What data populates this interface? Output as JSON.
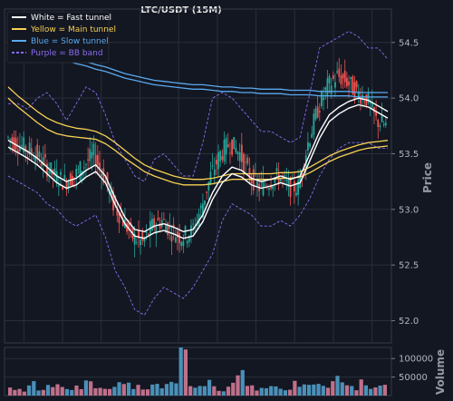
{
  "chart_data": {
    "type": "line",
    "title": "LTC/USDT (15M)",
    "price_ylabel": "Price",
    "volume_ylabel": "Volume",
    "price_ylim": [
      51.8,
      54.8
    ],
    "price_ticks": [
      52.0,
      52.5,
      53.0,
      53.5,
      54.0,
      54.5
    ],
    "price_tick_labels": [
      "52.0",
      "52.5",
      "53.0",
      "53.5",
      "54.0",
      "54.5"
    ],
    "volume_ylim": [
      0,
      130000
    ],
    "volume_ticks": [
      50000,
      100000
    ],
    "volume_tick_labels": [
      "50000",
      "100000"
    ],
    "legend": {
      "placement": "top-left",
      "entries": [
        {
          "label": "White = Fast tunnel",
          "color": "#ffffff",
          "style": "solid"
        },
        {
          "label": "Yellow = Main tunnel",
          "color": "#f7d154",
          "style": "solid"
        },
        {
          "label": "Blue = Slow tunnel",
          "color": "#5aa9f0",
          "style": "solid"
        },
        {
          "label": "Purple = BB band",
          "color": "#8a6cf0",
          "style": "dashed"
        }
      ]
    },
    "colors": {
      "up_candle": "#26a69a",
      "down_candle": "#ef5350",
      "fast_tunnel": "#ffffff",
      "main_tunnel": "#f7d154",
      "slow_tunnel": "#5aa9f0",
      "bb_band": "#8a6cf0",
      "volume_bar": "#4a90b8",
      "volume_bar_alt": "#c0708a"
    },
    "grid": true,
    "x_points": 40,
    "price_path": [
      53.65,
      53.6,
      53.55,
      53.5,
      53.4,
      53.3,
      53.25,
      53.3,
      53.4,
      53.5,
      53.3,
      53.05,
      52.9,
      52.75,
      52.7,
      52.85,
      52.9,
      52.8,
      52.75,
      52.8,
      53.0,
      53.3,
      53.5,
      53.6,
      53.5,
      53.3,
      53.2,
      53.25,
      53.3,
      53.2,
      53.2,
      53.6,
      53.9,
      54.1,
      54.2,
      54.15,
      54.05,
      54.0,
      53.8,
      53.75
    ],
    "fast_tunnel": {
      "upper": [
        53.62,
        53.57,
        53.52,
        53.46,
        53.38,
        53.3,
        53.25,
        53.28,
        53.35,
        53.4,
        53.3,
        53.1,
        52.93,
        52.82,
        52.8,
        52.85,
        52.87,
        52.84,
        52.8,
        52.82,
        52.95,
        53.15,
        53.3,
        53.38,
        53.35,
        53.28,
        53.25,
        53.27,
        53.3,
        53.27,
        53.3,
        53.5,
        53.7,
        53.85,
        53.92,
        53.97,
        54.0,
        53.98,
        53.93,
        53.88
      ],
      "lower": [
        53.56,
        53.51,
        53.46,
        53.4,
        53.32,
        53.24,
        53.19,
        53.22,
        53.29,
        53.34,
        53.24,
        53.04,
        52.87,
        52.76,
        52.74,
        52.79,
        52.81,
        52.78,
        52.74,
        52.76,
        52.89,
        53.09,
        53.24,
        53.32,
        53.29,
        53.22,
        53.19,
        53.21,
        53.24,
        53.21,
        53.24,
        53.44,
        53.64,
        53.79,
        53.86,
        53.91,
        53.94,
        53.92,
        53.87,
        53.82
      ]
    },
    "main_tunnel": {
      "upper": [
        54.1,
        54.02,
        53.95,
        53.88,
        53.82,
        53.78,
        53.75,
        53.73,
        53.72,
        53.7,
        53.66,
        53.6,
        53.53,
        53.46,
        53.4,
        53.36,
        53.33,
        53.3,
        53.28,
        53.27,
        53.27,
        53.28,
        53.3,
        53.32,
        53.32,
        53.32,
        53.32,
        53.32,
        53.33,
        53.33,
        53.34,
        53.38,
        53.43,
        53.48,
        53.52,
        53.55,
        53.58,
        53.6,
        53.61,
        53.62
      ],
      "lower": [
        54.0,
        53.92,
        53.85,
        53.78,
        53.72,
        53.68,
        53.66,
        53.65,
        53.64,
        53.63,
        53.59,
        53.53,
        53.46,
        53.4,
        53.34,
        53.3,
        53.27,
        53.24,
        53.22,
        53.22,
        53.22,
        53.23,
        53.25,
        53.27,
        53.27,
        53.27,
        53.27,
        53.27,
        53.28,
        53.28,
        53.29,
        53.33,
        53.38,
        53.43,
        53.47,
        53.5,
        53.53,
        53.55,
        53.56,
        53.57
      ]
    },
    "slow_tunnel": {
      "upper": [
        54.5,
        54.48,
        54.46,
        54.44,
        54.42,
        54.4,
        54.38,
        54.35,
        54.33,
        54.3,
        54.28,
        54.25,
        54.22,
        54.2,
        54.18,
        54.16,
        54.15,
        54.14,
        54.13,
        54.12,
        54.12,
        54.11,
        54.1,
        54.1,
        54.09,
        54.09,
        54.08,
        54.08,
        54.08,
        54.07,
        54.07,
        54.07,
        54.06,
        54.06,
        54.06,
        54.06,
        54.05,
        54.05,
        54.05,
        54.05
      ],
      "lower": [
        54.46,
        54.44,
        54.42,
        54.4,
        54.38,
        54.36,
        54.34,
        54.31,
        54.29,
        54.26,
        54.24,
        54.21,
        54.18,
        54.16,
        54.14,
        54.12,
        54.11,
        54.1,
        54.09,
        54.08,
        54.08,
        54.07,
        54.06,
        54.06,
        54.05,
        54.05,
        54.04,
        54.04,
        54.04,
        54.03,
        54.03,
        54.03,
        54.02,
        54.02,
        54.02,
        54.02,
        54.01,
        54.01,
        54.01,
        54.01
      ]
    },
    "bb_band": {
      "upper": [
        53.95,
        53.95,
        53.9,
        54.0,
        54.05,
        53.95,
        53.8,
        53.95,
        54.1,
        54.05,
        53.85,
        53.6,
        53.45,
        53.3,
        53.25,
        53.45,
        53.5,
        53.4,
        53.3,
        53.3,
        53.6,
        54.0,
        54.05,
        54.0,
        53.9,
        53.8,
        53.7,
        53.7,
        53.65,
        53.6,
        53.65,
        54.05,
        54.45,
        54.5,
        54.55,
        54.6,
        54.55,
        54.45,
        54.45,
        54.35
      ],
      "lower": [
        53.3,
        53.25,
        53.2,
        53.15,
        53.05,
        53.0,
        52.9,
        52.85,
        52.9,
        52.95,
        52.75,
        52.45,
        52.3,
        52.1,
        52.05,
        52.2,
        52.3,
        52.25,
        52.2,
        52.3,
        52.45,
        52.6,
        52.9,
        53.05,
        53.0,
        52.95,
        52.85,
        52.85,
        52.9,
        52.85,
        52.95,
        53.1,
        53.3,
        53.45,
        53.55,
        53.6,
        53.6,
        53.6,
        53.55,
        53.55
      ]
    },
    "volume_values": [
      20000,
      15000,
      35000,
      12000,
      30000,
      25000,
      18000,
      22000,
      45000,
      20000,
      15000,
      28000,
      32000,
      25000,
      20000,
      40000,
      28000,
      30000,
      110000,
      25000,
      20000,
      35000,
      15000,
      30000,
      60000,
      22000,
      18000,
      25000,
      20000,
      15000,
      32000,
      38000,
      25000,
      30000,
      45000,
      28000,
      20000,
      35000,
      18000,
      25000
    ]
  }
}
